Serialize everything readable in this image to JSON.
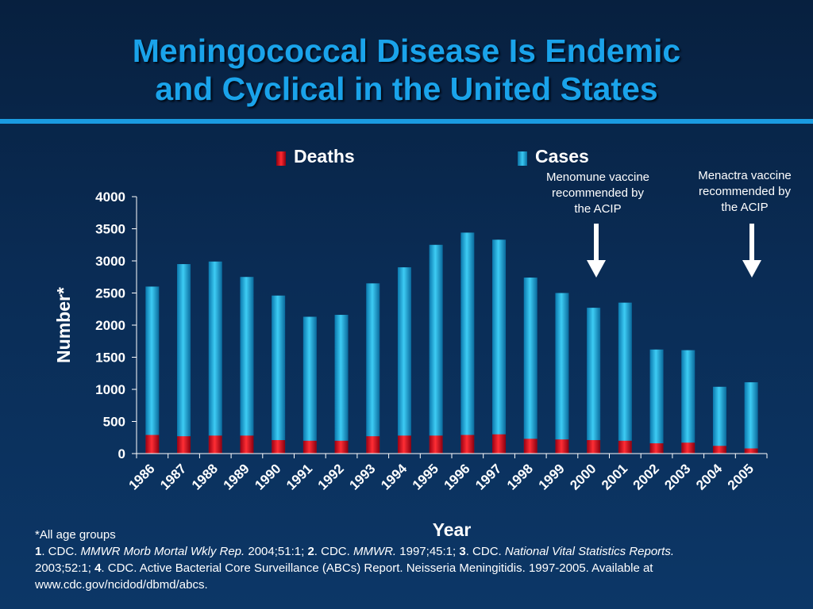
{
  "title": {
    "line1": "Meningococcal Disease Is Endemic",
    "line2": "and Cyclical in the United States"
  },
  "chart_data": {
    "type": "bar",
    "xlabel": "Year",
    "ylabel": "Number*",
    "ylim": [
      0,
      4000
    ],
    "yticks": [
      0,
      500,
      1000,
      1500,
      2000,
      2500,
      3000,
      3500,
      4000
    ],
    "legend_position": "top",
    "categories": [
      "1986",
      "1987",
      "1988",
      "1989",
      "1990",
      "1991",
      "1992",
      "1993",
      "1994",
      "1995",
      "1996",
      "1997",
      "1998",
      "1999",
      "2000",
      "2001",
      "2002",
      "2003",
      "2004",
      "2005"
    ],
    "series": [
      {
        "name": "Deaths",
        "color": "#e01020",
        "values": [
          290,
          270,
          280,
          280,
          210,
          200,
          200,
          270,
          280,
          280,
          290,
          300,
          230,
          220,
          210,
          200,
          160,
          170,
          120,
          80
        ]
      },
      {
        "name": "Cases",
        "color": "#1ab2e6",
        "values": [
          2600,
          2950,
          2990,
          2750,
          2460,
          2130,
          2160,
          2650,
          2900,
          3250,
          3440,
          3330,
          2740,
          2500,
          2270,
          2350,
          1620,
          1610,
          1040,
          1110
        ]
      }
    ],
    "annotations": [
      {
        "text": "Menomune vaccine recommended by the ACIP",
        "year": "2000"
      },
      {
        "text": "Menactra vaccine recommended by the ACIP",
        "year": "2005"
      }
    ]
  },
  "legend": {
    "deaths": "Deaths",
    "cases": "Cases"
  },
  "annotation_1": {
    "line1": "Menomune vaccine",
    "line2": "recommended by",
    "line3": "the ACIP"
  },
  "annotation_2": {
    "line1": "Menactra vaccine",
    "line2": "recommended by",
    "line3": "the ACIP"
  },
  "footnote": {
    "line1": "*All age groups",
    "ref1_num": "1",
    "ref1_a": ". CDC. ",
    "ref1_journal": "MMWR Morb Mortal Wkly Rep.",
    "ref1_b": " 2004;51:1; ",
    "ref2_num": "2",
    "ref2_a": ". CDC. ",
    "ref2_journal": "MMWR.",
    "ref2_b": " 1997;45:1; ",
    "ref3_num": "3",
    "ref3_a": ". CDC. ",
    "ref3_journal": "National Vital Statistics Reports.",
    "ref3_b": "2003;52:1; ",
    "ref4_num": "4",
    "ref4_a": ". CDC. Active Bacterial Core Surveillance (ABCs) Report. Neisseria Meningitidis. 1997-2005. Available at",
    "url": "www.cdc.gov/ncidod/dbmd/abcs."
  },
  "colors": {
    "background": "#0a2c55",
    "title": "#1aa3ea",
    "rule": "#1a9be0",
    "deaths": "#e01020",
    "cases": "#1ab2e6"
  }
}
